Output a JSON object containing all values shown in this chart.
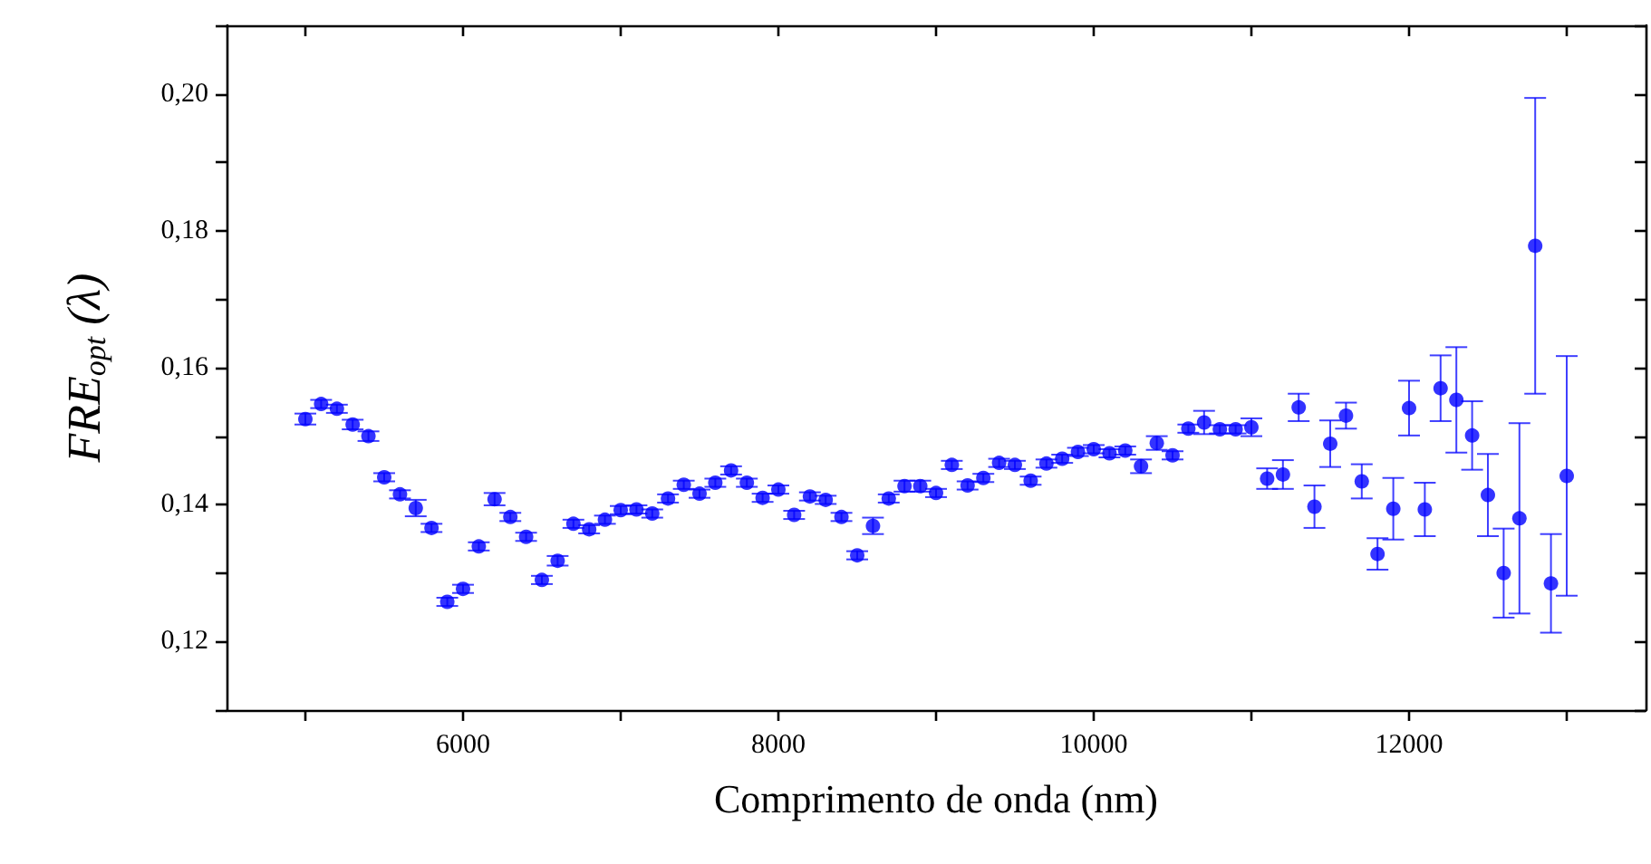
{
  "chart_data": {
    "type": "scatter",
    "xlabel": "Comprimento de onda (nm)",
    "ylabel": "FRE$_{opt}$ (λ)",
    "x": [
      5000,
      5100,
      5200,
      5300,
      5400,
      5500,
      5600,
      5700,
      5800,
      5900,
      6000,
      6100,
      6200,
      6300,
      6400,
      6500,
      6600,
      6700,
      6800,
      6900,
      7000,
      7100,
      7200,
      7300,
      7400,
      7500,
      7600,
      7700,
      7800,
      7900,
      8000,
      8100,
      8200,
      8300,
      8400,
      8500,
      8600,
      8700,
      8800,
      8900,
      9000,
      9100,
      9200,
      9300,
      9400,
      9500,
      9600,
      9700,
      9800,
      9900,
      10000,
      10100,
      10200,
      10300,
      10400,
      10500,
      10600,
      10700,
      10800,
      10900,
      11000,
      11100,
      11200,
      11300,
      11400,
      11500,
      11600,
      11700,
      11800,
      11900,
      12000,
      12100,
      12200,
      12300,
      12400,
      12500,
      12600,
      12700,
      12800,
      12900,
      13000
    ],
    "values": [
      0.1525,
      0.1547,
      0.154,
      0.1517,
      0.15,
      0.144,
      0.1415,
      0.1395,
      0.1366,
      0.1258,
      0.1277,
      0.1339,
      0.1408,
      0.1382,
      0.1353,
      0.129,
      0.1318,
      0.1372,
      0.1364,
      0.1378,
      0.1392,
      0.1393,
      0.1387,
      0.1409,
      0.1429,
      0.1416,
      0.1432,
      0.145,
      0.1432,
      0.141,
      0.1422,
      0.1385,
      0.1412,
      0.1407,
      0.1382,
      0.1326,
      0.1369,
      0.1409,
      0.1427,
      0.1427,
      0.1417,
      0.1458,
      0.1428,
      0.1439,
      0.1461,
      0.1458,
      0.1435,
      0.146,
      0.1467,
      0.1477,
      0.1481,
      0.1475,
      0.1479,
      0.1456,
      0.149,
      0.1472,
      0.1511,
      0.152,
      0.151,
      0.151,
      0.1513,
      0.1438,
      0.1444,
      0.1542,
      0.1397,
      0.1489,
      0.153,
      0.1434,
      0.1328,
      0.1394,
      0.1541,
      0.1393,
      0.157,
      0.1553,
      0.1501,
      0.1414,
      0.13,
      0.138,
      0.1778,
      0.1285,
      0.1442
    ],
    "errors": [
      0.0008,
      0.0006,
      0.0006,
      0.0007,
      0.0007,
      0.0006,
      0.0006,
      0.0012,
      0.0006,
      0.0006,
      0.0006,
      0.0006,
      0.0009,
      0.0006,
      0.0006,
      0.0006,
      0.0007,
      0.0006,
      0.0006,
      0.0006,
      0.0006,
      0.0006,
      0.0006,
      0.0006,
      0.0006,
      0.0006,
      0.0006,
      0.0006,
      0.0006,
      0.0006,
      0.0006,
      0.0006,
      0.0006,
      0.0006,
      0.0006,
      0.0006,
      0.0012,
      0.0006,
      0.0008,
      0.0008,
      0.0006,
      0.0006,
      0.0006,
      0.0006,
      0.0006,
      0.0006,
      0.0006,
      0.0006,
      0.0006,
      0.0006,
      0.0006,
      0.0006,
      0.0006,
      0.001,
      0.001,
      0.0006,
      0.0006,
      0.0017,
      0.0006,
      0.0006,
      0.0013,
      0.0015,
      0.0021,
      0.002,
      0.0031,
      0.0034,
      0.0019,
      0.0025,
      0.0023,
      0.0045,
      0.004,
      0.0039,
      0.0048,
      0.0077,
      0.005,
      0.006,
      0.0065,
      0.0139,
      0.0216,
      0.0072,
      0.0175
    ],
    "color": "#0000ff",
    "marker": "circle",
    "xlim": [
      4500,
      13500
    ],
    "xticks": [
      {
        "value": 5000,
        "label": null
      },
      {
        "value": 6000,
        "label": "6000"
      },
      {
        "value": 7000,
        "label": null
      },
      {
        "value": 8000,
        "label": "8000"
      },
      {
        "value": 9000,
        "label": null
      },
      {
        "value": 10000,
        "label": "10000"
      },
      {
        "value": 11000,
        "label": null
      },
      {
        "value": 12000,
        "label": "12000"
      },
      {
        "value": 13000,
        "label": null
      }
    ],
    "ylim": [
      0.11,
      0.21
    ],
    "yticks": [
      {
        "value": 0.11,
        "label": null
      },
      {
        "value": 0.12,
        "label": "0,12"
      },
      {
        "value": 0.13,
        "label": null
      },
      {
        "value": 0.14,
        "label": "0,14"
      },
      {
        "value": 0.15,
        "label": null
      },
      {
        "value": 0.16,
        "label": "0,16"
      },
      {
        "value": 0.17,
        "label": null
      },
      {
        "value": 0.18,
        "label": "0,18"
      },
      {
        "value": 0.19,
        "label": null
      },
      {
        "value": 0.2,
        "label": "0,20"
      },
      {
        "value": 0.21,
        "label": null
      }
    ],
    "grid": false
  }
}
